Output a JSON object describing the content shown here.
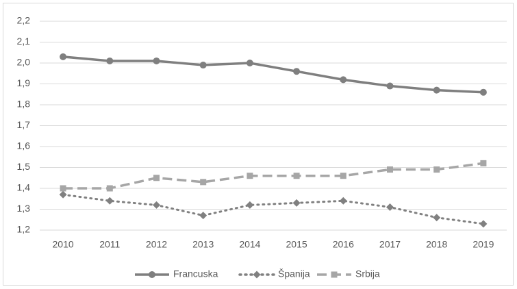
{
  "chart_data": {
    "type": "line",
    "categories": [
      "2010",
      "2011",
      "2012",
      "2013",
      "2014",
      "2015",
      "2016",
      "2017",
      "2018",
      "2019"
    ],
    "series": [
      {
        "name": "Francuska",
        "color": "#7f7f7f",
        "dash": "solid",
        "marker": "circle",
        "values": [
          2.03,
          2.01,
          2.01,
          1.99,
          2.0,
          1.96,
          1.92,
          1.89,
          1.87,
          1.86
        ]
      },
      {
        "name": "Španija",
        "color": "#808080",
        "dash": "dotted",
        "marker": "diamond",
        "values": [
          1.37,
          1.34,
          1.32,
          1.27,
          1.32,
          1.33,
          1.34,
          1.31,
          1.26,
          1.23
        ]
      },
      {
        "name": "Srbija",
        "color": "#a6a6a6",
        "dash": "dashed",
        "marker": "square",
        "values": [
          1.4,
          1.4,
          1.45,
          1.43,
          1.46,
          1.46,
          1.46,
          1.49,
          1.49,
          1.52
        ]
      }
    ],
    "ylim": [
      1.2,
      2.2
    ],
    "yticks": [
      {
        "value": 1.2,
        "label": "1,2"
      },
      {
        "value": 1.3,
        "label": "1,3"
      },
      {
        "value": 1.4,
        "label": "1,4"
      },
      {
        "value": 1.5,
        "label": "1,5"
      },
      {
        "value": 1.6,
        "label": "1,6"
      },
      {
        "value": 1.7,
        "label": "1,7"
      },
      {
        "value": 1.8,
        "label": "1,8"
      },
      {
        "value": 1.9,
        "label": "1,9"
      },
      {
        "value": 2.0,
        "label": "2,0"
      },
      {
        "value": 2.1,
        "label": "2,1"
      },
      {
        "value": 2.2,
        "label": "2,2"
      }
    ],
    "grid": true,
    "legend": "bottom"
  }
}
